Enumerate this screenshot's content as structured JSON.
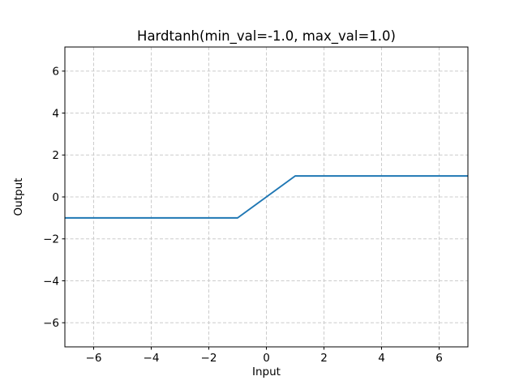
{
  "figure": {
    "background": "#ffffff"
  },
  "chart_data": {
    "type": "line",
    "title": "Hardtanh(min_val=-1.0, max_val=1.0)",
    "xlabel": "Input",
    "ylabel": "Output",
    "xlim": [
      -7,
      7
    ],
    "ylim": [
      -7.15,
      7.15
    ],
    "xticks": [
      -6,
      -4,
      -2,
      0,
      2,
      4,
      6
    ],
    "yticks": [
      -6,
      -4,
      -2,
      0,
      2,
      4,
      6
    ],
    "grid": true,
    "grid_color": "#cccccc",
    "grid_dash": "4 2.5",
    "line_color": "#1f77b4",
    "legend": "none",
    "series": [
      {
        "name": "Hardtanh",
        "x": [
          -7,
          -1,
          1,
          7
        ],
        "y": [
          -1,
          -1,
          1,
          1
        ]
      }
    ]
  }
}
